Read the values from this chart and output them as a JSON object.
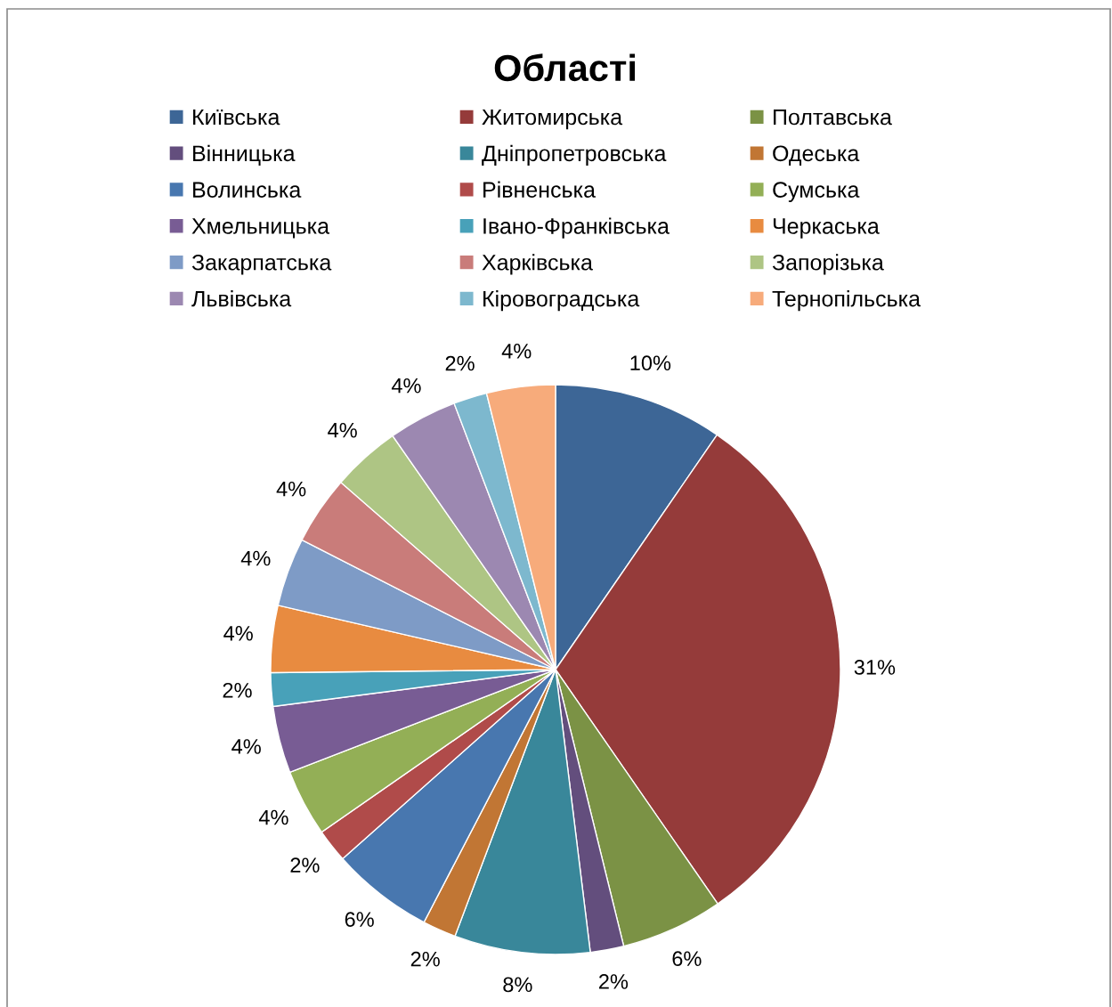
{
  "chart_data": {
    "type": "pie",
    "title": "Області",
    "categories": [
      "Київська",
      "Житомирська",
      "Полтавська",
      "Вінницька",
      "Дніпропетровська",
      "Одеська",
      "Волинська",
      "Рівненська",
      "Сумська",
      "Хмельницька",
      "Івано-Франківська",
      "Черкаська",
      "Закарпатська",
      "Харківська",
      "Запорізька",
      "Львівська",
      "Кіровоградська",
      "Тернопільська"
    ],
    "values": [
      9.6,
      30.8,
      5.8,
      1.9,
      7.7,
      1.9,
      5.8,
      1.9,
      3.8,
      3.8,
      1.9,
      3.8,
      3.9,
      3.9,
      3.9,
      3.9,
      1.9,
      3.9
    ],
    "value_labels": [
      "10%",
      "31%",
      "6%",
      "2%",
      "8%",
      "2%",
      "6%",
      "2%",
      "4%",
      "4%",
      "2%",
      "4%",
      "4%",
      "4%",
      "4%",
      "4%",
      "2%",
      "4%"
    ],
    "colors": [
      "#3d6696",
      "#953b3a",
      "#7b9245",
      "#634e7d",
      "#39879a",
      "#c17634",
      "#4877af",
      "#b04b4a",
      "#93af56",
      "#785c94",
      "#48a1b9",
      "#e88b40",
      "#7e9bc6",
      "#c97c7a",
      "#aec584",
      "#9c88b1",
      "#7db8ce",
      "#f7ab7b"
    ],
    "legend": "top"
  }
}
